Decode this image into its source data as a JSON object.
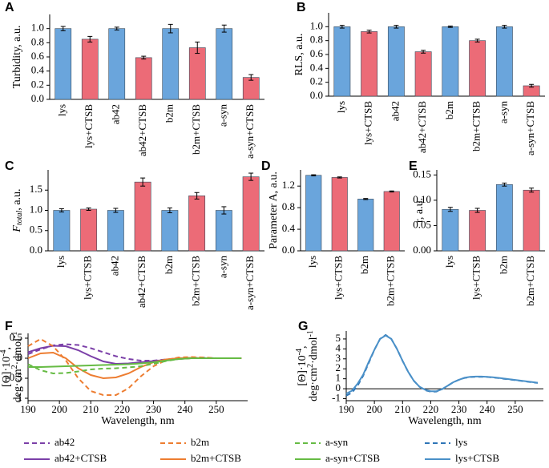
{
  "chart_data": [
    {
      "type": "bar",
      "panel_label": "A",
      "ylabel": "Turbidity, a.u.",
      "categories": [
        "lys",
        "lys+CTSB",
        "ab42",
        "ab42+CTSB",
        "b2m",
        "b2m+CTSB",
        "a-syn",
        "a-syn+CTSB"
      ],
      "values": [
        1.0,
        0.85,
        1.0,
        0.59,
        1.0,
        0.73,
        1.0,
        0.31
      ],
      "errors": [
        0.03,
        0.04,
        0.02,
        0.02,
        0.06,
        0.08,
        0.05,
        0.04
      ],
      "colors": [
        "#6aa5dc",
        "#ec6b77",
        "#6aa5dc",
        "#ec6b77",
        "#6aa5dc",
        "#ec6b77",
        "#6aa5dc",
        "#ec6b77"
      ],
      "ylim": [
        0,
        1.2
      ],
      "yticks": [
        {
          "value": 0,
          "label": "0.0"
        },
        0.2,
        0.4,
        0.6,
        0.8,
        {
          "value": 1,
          "label": "1.0"
        }
      ]
    },
    {
      "type": "bar",
      "panel_label": "B",
      "ylabel": "RLS, a.u.",
      "categories": [
        "lys",
        "lys+CTSB",
        "ab42",
        "ab42+CTSB",
        "b2m",
        "b2m+CTSB",
        "a-syn",
        "a-syn+CTSB"
      ],
      "values": [
        1.0,
        0.93,
        1.0,
        0.64,
        1.0,
        0.8,
        1.0,
        0.15
      ],
      "errors": [
        0.02,
        0.02,
        0.02,
        0.02,
        0.01,
        0.02,
        0.02,
        0.02
      ],
      "colors": [
        "#6aa5dc",
        "#ec6b77",
        "#6aa5dc",
        "#ec6b77",
        "#6aa5dc",
        "#ec6b77",
        "#6aa5dc",
        "#ec6b77"
      ],
      "ylim": [
        0,
        1.2
      ],
      "yticks": [
        {
          "value": 0,
          "label": "0.0"
        },
        0.2,
        0.4,
        0.6,
        0.8,
        {
          "value": 1,
          "label": "1.0"
        }
      ]
    },
    {
      "type": "bar",
      "panel_label": "C",
      "ylabel": [
        "F",
        "total",
        ", a.u."
      ],
      "categories": [
        "lys",
        "lys+CTSB",
        "ab42",
        "ab42+CTSB",
        "b2m",
        "b2m+CTSB",
        "a-syn",
        "a-syn+CTSB"
      ],
      "values": [
        1.0,
        1.03,
        1.0,
        1.7,
        1.0,
        1.36,
        1.0,
        1.83
      ],
      "errors": [
        0.04,
        0.03,
        0.05,
        0.1,
        0.06,
        0.08,
        0.09,
        0.09
      ],
      "colors": [
        "#6aa5dc",
        "#ec6b77",
        "#6aa5dc",
        "#ec6b77",
        "#6aa5dc",
        "#ec6b77",
        "#6aa5dc",
        "#ec6b77"
      ],
      "ylim": [
        0,
        2.0
      ],
      "yticks": [
        {
          "value": 0,
          "label": "0.0"
        },
        0.5,
        {
          "value": 1,
          "label": "1.0"
        },
        1.5
      ]
    },
    {
      "type": "bar",
      "panel_label": "D",
      "ylabel": "Parameter A, a.u.",
      "categories": [
        "lys",
        "lys+CTSB",
        "b2m",
        "b2m+CTSB"
      ],
      "values": [
        1.4,
        1.36,
        0.96,
        1.1
      ],
      "errors": [
        0.01,
        0.01,
        0.01,
        0.01
      ],
      "colors": [
        "#6aa5dc",
        "#ec6b77",
        "#6aa5dc",
        "#ec6b77"
      ],
      "ylim": [
        0,
        1.5
      ],
      "yticks": [
        {
          "value": 0,
          "label": "0.0"
        },
        0.4,
        0.8,
        1.2
      ]
    },
    {
      "type": "bar",
      "panel_label": "E",
      "ylabel": "r, a.u.",
      "categories": [
        "lys",
        "lys+CTSB",
        "b2m",
        "b2m+CTSB"
      ],
      "values": [
        0.082,
        0.08,
        0.131,
        0.12
      ],
      "errors": [
        0.004,
        0.004,
        0.003,
        0.004
      ],
      "colors": [
        "#6aa5dc",
        "#ec6b77",
        "#6aa5dc",
        "#ec6b77"
      ],
      "ylim": [
        0,
        0.16
      ],
      "yticks": [
        {
          "value": 0,
          "label": "0.00"
        },
        0.05,
        {
          "value": 0.1,
          "label": "0.10"
        },
        0.15
      ]
    },
    {
      "type": "line",
      "panel_label": "F",
      "xlabel": "Wavelength, nm",
      "ylabel": [
        [
          "[Θ]·10",
          "-4",
          ","
        ],
        [
          "deg·cm",
          "2",
          "·dmol",
          "-1"
        ]
      ],
      "x": [
        190,
        194,
        198,
        202,
        206,
        210,
        214,
        218,
        222,
        226,
        230,
        234,
        238,
        242,
        246,
        250,
        254,
        258
      ],
      "series": [
        {
          "name": "ab42",
          "color": "#7b3fa8",
          "linestyle": "dashed",
          "values": [
            0.1,
            0.22,
            0.32,
            0.35,
            0.33,
            0.25,
            0.15,
            0.05,
            -0.02,
            -0.06,
            -0.06,
            -0.03,
            0.0,
            0.01,
            0.01,
            0.0,
            0.0,
            0.0
          ]
        },
        {
          "name": "ab42+CTSB",
          "color": "#7b3fa8",
          "linestyle": "solid",
          "values": [
            0.15,
            0.25,
            0.31,
            0.3,
            0.2,
            0.05,
            -0.08,
            -0.14,
            -0.13,
            -0.1,
            -0.07,
            -0.04,
            -0.02,
            0.0,
            0.0,
            0.0,
            0.0,
            0.0
          ]
        },
        {
          "name": "b2m",
          "color": "#ed7d31",
          "linestyle": "dashed",
          "values": [
            0.3,
            0.48,
            0.3,
            -0.05,
            -0.5,
            -0.82,
            -0.92,
            -0.92,
            -0.75,
            -0.45,
            -0.2,
            -0.05,
            0.02,
            0.03,
            0.02,
            0.0,
            0.0,
            0.0
          ]
        },
        {
          "name": "b2m+CTSB",
          "color": "#ed7d31",
          "linestyle": "solid",
          "values": [
            0.0,
            0.12,
            0.14,
            0.0,
            -0.25,
            -0.42,
            -0.5,
            -0.48,
            -0.38,
            -0.22,
            -0.1,
            -0.03,
            0.0,
            0.01,
            0.0,
            0.0,
            0.0,
            0.0
          ]
        },
        {
          "name": "a-syn",
          "color": "#66bb44",
          "linestyle": "dashed",
          "values": [
            -0.15,
            -0.3,
            -0.38,
            -0.37,
            -0.33,
            -0.28,
            -0.26,
            -0.25,
            -0.23,
            -0.2,
            -0.14,
            -0.07,
            -0.02,
            0.0,
            0.0,
            0.0,
            0.0,
            0.0
          ]
        },
        {
          "name": "a-syn+CTSB",
          "color": "#66bb44",
          "linestyle": "solid",
          "values": [
            -0.22,
            -0.22,
            -0.21,
            -0.2,
            -0.19,
            -0.18,
            -0.17,
            -0.16,
            -0.15,
            -0.13,
            -0.1,
            -0.06,
            -0.02,
            0.0,
            0.0,
            0.0,
            0.0,
            0.0
          ]
        }
      ],
      "xlim": [
        190,
        260
      ],
      "xticks": [
        190,
        200,
        210,
        220,
        230,
        240,
        250
      ],
      "ylim": [
        -1.06,
        0.62
      ],
      "yticks": [
        -1,
        -0.5,
        0,
        0.5
      ]
    },
    {
      "type": "line",
      "panel_label": "G",
      "xlabel": "Wavelength, nm",
      "ylabel": [
        [
          "[Θ]·10",
          "-4",
          ","
        ],
        [
          "deg·cm",
          "2",
          "·dmol",
          "-1"
        ]
      ],
      "x": [
        190,
        192,
        194,
        196,
        198,
        200,
        202,
        204,
        206,
        208,
        210,
        212,
        214,
        216,
        218,
        220,
        222,
        224,
        226,
        228,
        230,
        232,
        234,
        236,
        238,
        240,
        242,
        244,
        246,
        248,
        250,
        252,
        254,
        256,
        258
      ],
      "series": [
        {
          "name": "lys",
          "color": "#2e75b6",
          "linestyle": "dashed",
          "values": [
            -0.7,
            -0.4,
            0.3,
            1.3,
            2.6,
            3.9,
            5.0,
            5.4,
            5.0,
            4.0,
            2.8,
            1.7,
            0.8,
            0.2,
            -0.15,
            -0.3,
            -0.28,
            -0.05,
            0.3,
            0.65,
            0.9,
            1.08,
            1.17,
            1.2,
            1.2,
            1.18,
            1.13,
            1.07,
            1.0,
            0.93,
            0.86,
            0.79,
            0.72,
            0.65,
            0.58
          ]
        },
        {
          "name": "lys+CTSB",
          "color": "#4a90c8",
          "linestyle": "solid",
          "values": [
            -0.5,
            -0.2,
            0.5,
            1.4,
            2.7,
            3.9,
            5.0,
            5.35,
            5.0,
            4.0,
            2.8,
            1.7,
            0.8,
            0.2,
            -0.1,
            -0.25,
            -0.25,
            -0.05,
            0.3,
            0.65,
            0.9,
            1.1,
            1.19,
            1.22,
            1.22,
            1.2,
            1.15,
            1.09,
            1.02,
            0.95,
            0.88,
            0.81,
            0.74,
            0.67,
            0.6
          ]
        }
      ],
      "xlim": [
        190,
        260
      ],
      "xticks": [
        190,
        200,
        210,
        220,
        230,
        240,
        250
      ],
      "ylim": [
        -1.2,
        5.8
      ],
      "yticks": [
        -1,
        0,
        1,
        2,
        3,
        4,
        5
      ],
      "zero_line": true
    }
  ]
}
